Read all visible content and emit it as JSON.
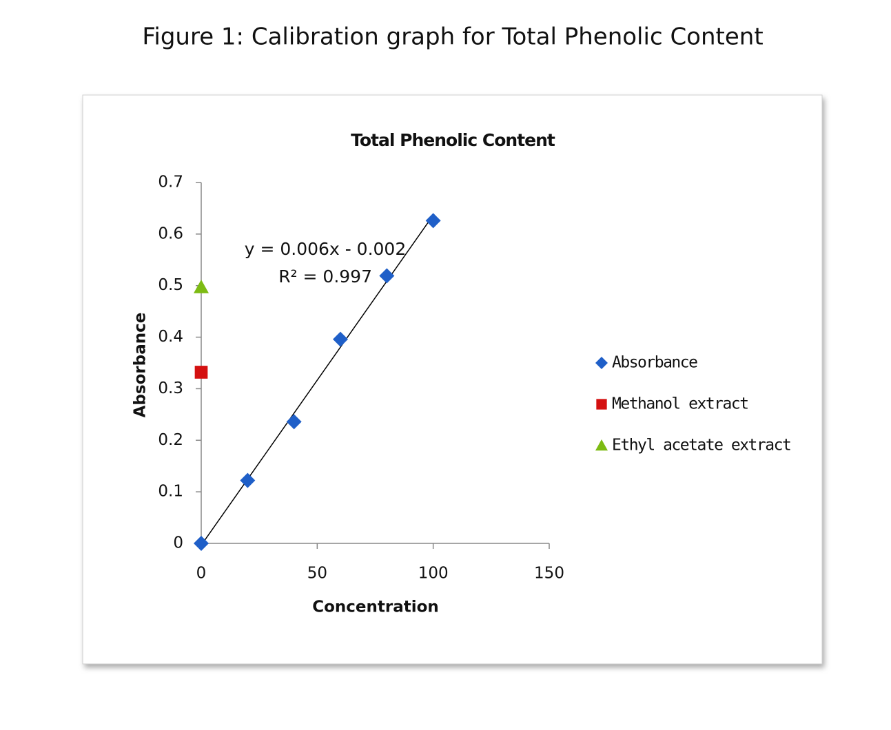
{
  "caption": "Figure 1: Calibration graph for Total Phenolic Content",
  "chart_data": {
    "type": "scatter",
    "title": "Total Phenolic Content",
    "x_label": "Concentration",
    "y_label": "Absorbance",
    "xlim": [
      0,
      150
    ],
    "xticks": [
      0,
      50,
      100,
      150
    ],
    "ylim": [
      0,
      0.7
    ],
    "yticks": [
      0,
      0.1,
      0.2,
      0.3,
      0.4,
      0.5,
      0.6,
      0.7
    ],
    "grid": false,
    "legend_position": "right",
    "series": [
      {
        "name": "Absorbance",
        "color": "#1f5fc8",
        "marker": "diamond",
        "trendline": true,
        "x": [
          0,
          20,
          40,
          60,
          80,
          100
        ],
        "values": [
          0,
          0.122,
          0.236,
          0.396,
          0.519,
          0.626
        ]
      },
      {
        "name": "Methanol extract",
        "color": "#d41010",
        "marker": "square",
        "x": [
          0
        ],
        "values": [
          0.332
        ]
      },
      {
        "name": "Ethyl acetate extract",
        "color": "#7dbb13",
        "marker": "triangle",
        "x": [
          0
        ],
        "values": [
          0.497
        ]
      }
    ],
    "annotations": [
      "y = 0.006x - 0.002",
      "R² = 0.997"
    ]
  }
}
